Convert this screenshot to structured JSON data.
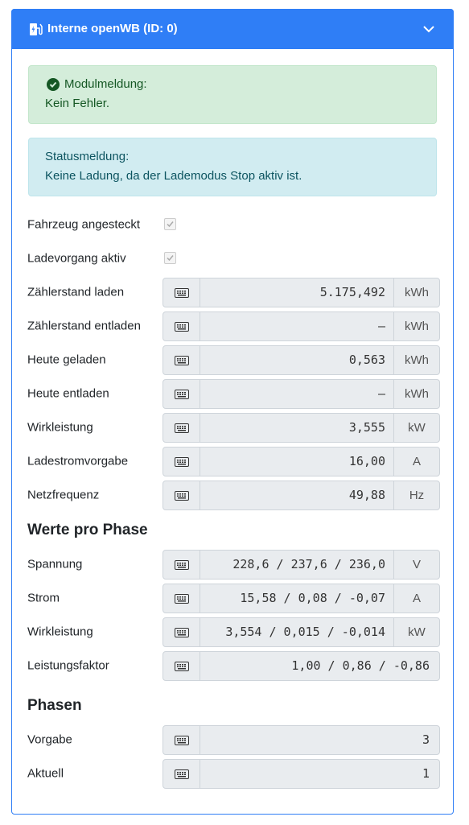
{
  "header": {
    "title": "Interne openWB (ID: 0)"
  },
  "alerts": [
    {
      "title": "Modulmeldung:",
      "text": "Kein Fehler."
    },
    {
      "title": "Statusmeldung:",
      "text": "Keine Ladung, da der Lademodus Stop aktiv ist."
    }
  ],
  "checkboxes": [
    {
      "label": "Fahrzeug angesteckt",
      "checked": true
    },
    {
      "label": "Ladevorgang aktiv",
      "checked": true
    }
  ],
  "fields": [
    {
      "label": "Zählerstand laden",
      "value": "5.175,492",
      "unit": "kWh"
    },
    {
      "label": "Zählerstand entladen",
      "value": "–",
      "unit": "kWh"
    },
    {
      "label": "Heute geladen",
      "value": "0,563",
      "unit": "kWh"
    },
    {
      "label": "Heute entladen",
      "value": "–",
      "unit": "kWh"
    },
    {
      "label": "Wirkleistung",
      "value": "3,555",
      "unit": "kW"
    },
    {
      "label": "Ladestromvorgabe",
      "value": "16,00",
      "unit": "A"
    },
    {
      "label": "Netzfrequenz",
      "value": "49,88",
      "unit": "Hz"
    }
  ],
  "sections": [
    {
      "heading": "Werte pro Phase",
      "fields": [
        {
          "label": "Spannung",
          "value": "228,6 / 237,6 / 236,0",
          "unit": "V"
        },
        {
          "label": "Strom",
          "value": "15,58 / 0,08 / -0,07",
          "unit": "A"
        },
        {
          "label": "Wirkleistung",
          "value": "3,554 / 0,015 / -0,014",
          "unit": "kW"
        },
        {
          "label": "Leistungsfaktor",
          "value": "1,00 / 0,86 / -0,86"
        }
      ]
    },
    {
      "heading": "Phasen",
      "fields": [
        {
          "label": "Vorgabe",
          "value": "3"
        },
        {
          "label": "Aktuell",
          "value": "1"
        }
      ]
    }
  ]
}
